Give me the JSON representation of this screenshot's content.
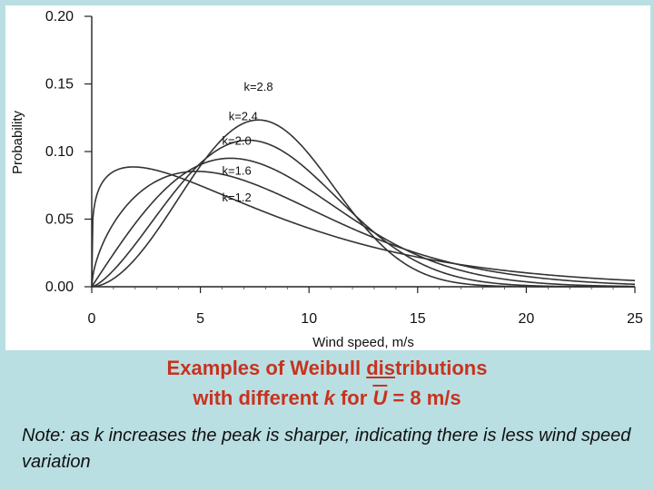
{
  "chart_data": {
    "type": "line",
    "title": "",
    "xlabel": "Wind speed, m/s",
    "ylabel": "Probability",
    "xlim": [
      0,
      25
    ],
    "ylim": [
      0,
      0.2
    ],
    "x_ticks": [
      "0",
      "5",
      "10",
      "15",
      "20",
      "25"
    ],
    "y_ticks": [
      "0.00",
      "0.05",
      "0.10",
      "0.15",
      "0.20"
    ],
    "grid": false,
    "mean_wind_speed": 8,
    "series": [
      {
        "name": "k=2.8",
        "k": 2.8
      },
      {
        "name": "k=2.4",
        "k": 2.4
      },
      {
        "name": "k=2.0",
        "k": 2.0
      },
      {
        "name": "k=1.6",
        "k": 1.6
      },
      {
        "name": "k=1.2",
        "k": 1.2
      }
    ]
  },
  "caption": {
    "line1_a": "Examples of Weibull ",
    "line1_ul": "dis",
    "line1_b": "tributions",
    "line2_a": "with different ",
    "line2_k": "k",
    "line2_b": " for ",
    "line2_u": "U",
    "line2_c": " = 8 m/s"
  },
  "note": "Note: as k increases the peak is sharper, indicating there is less wind speed variation"
}
